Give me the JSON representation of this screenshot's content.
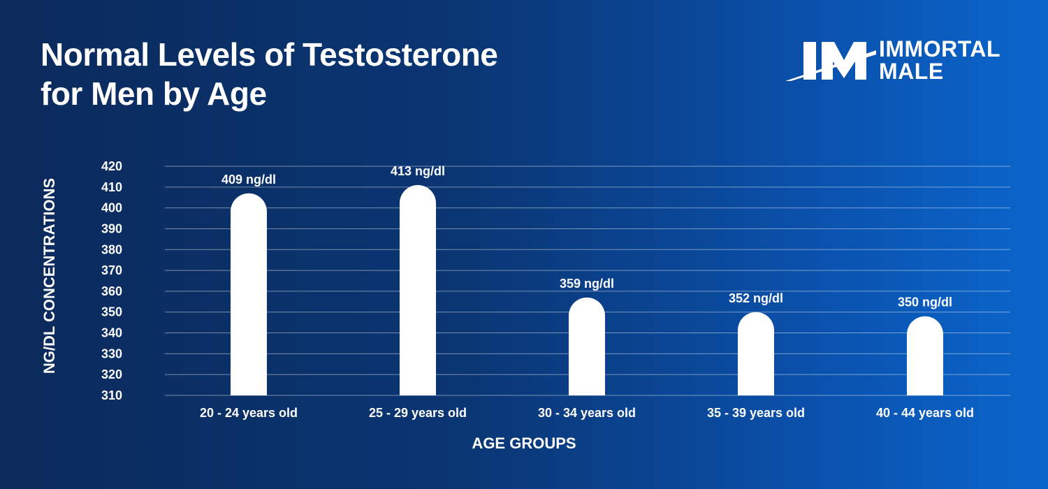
{
  "header": {
    "title_line1": "Normal Levels of Testosterone",
    "title_line2": "for Men by Age"
  },
  "logo": {
    "line1": "IMMORTAL",
    "line2": "MALE",
    "mark": "IM"
  },
  "colors": {
    "background_start": "#0b2a5b",
    "background_end": "#0b66cc",
    "bar": "#ffffff",
    "text": "#ffffff"
  },
  "chart_data": {
    "type": "bar",
    "title": "Normal Levels of Testosterone for Men by Age",
    "xlabel": "AGE GROUPS",
    "ylabel": "NG/DL CONCENTRATIONS",
    "ylim": [
      310,
      420
    ],
    "yticks": [
      310,
      320,
      330,
      340,
      350,
      360,
      370,
      380,
      390,
      400,
      410,
      420
    ],
    "grid": true,
    "categories": [
      "20 - 24 years old",
      "25 - 29 years old",
      "30 - 34 years old",
      "35 - 39 years old",
      "40 - 44 years old"
    ],
    "values": [
      409,
      413,
      359,
      352,
      350
    ],
    "data_labels": [
      "409 ng/dl",
      "413 ng/dl",
      "359 ng/dl",
      "352 ng/dl",
      "350 ng/dl"
    ]
  }
}
